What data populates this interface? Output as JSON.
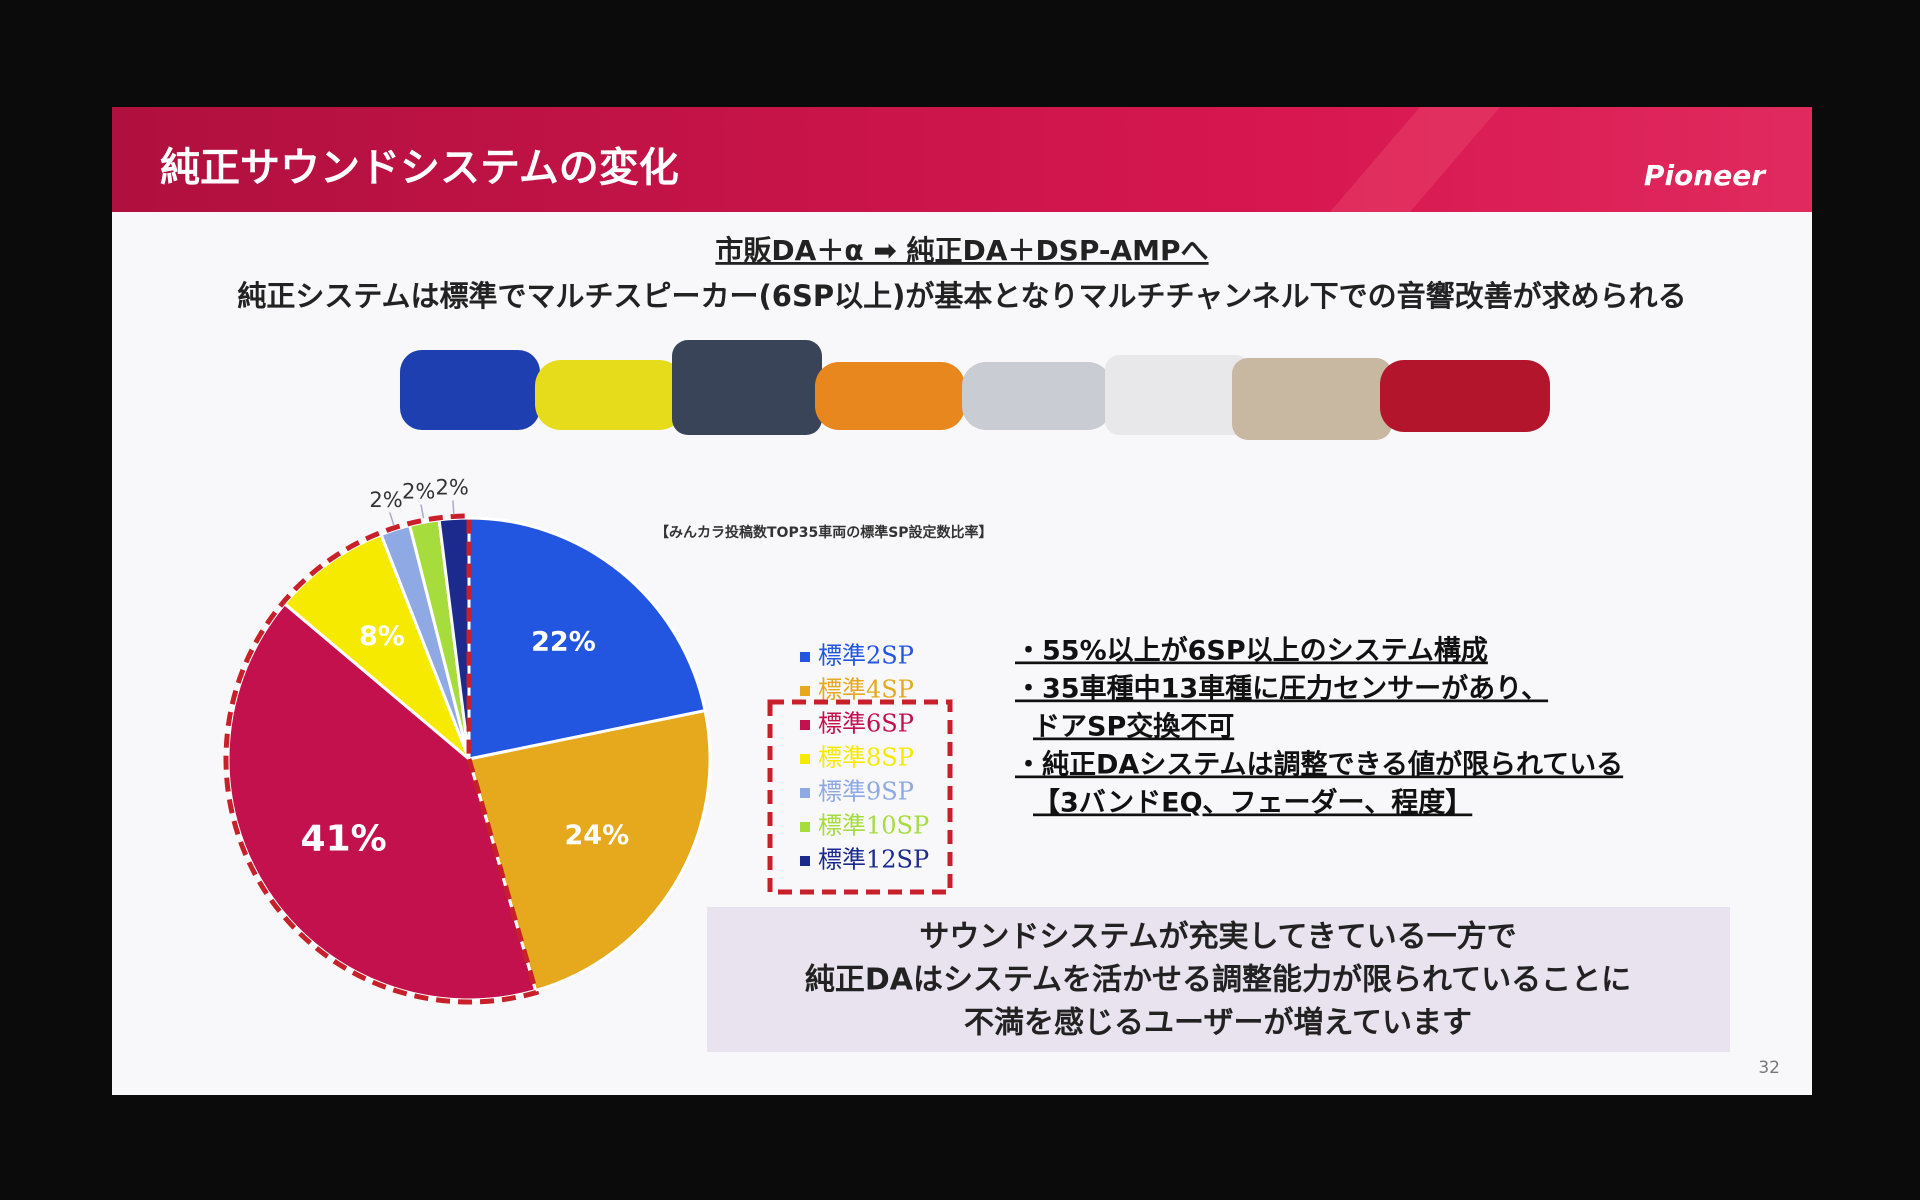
{
  "slide": {
    "title": "純正サウンドシステムの変化",
    "logo": "Pioneer",
    "headline": "市販DA＋α ➡ 純正DA＋DSP-AMPへ",
    "subheadline": "純正システムは標準でマルチスピーカー(6SP以上)が基本となりマルチチャンネル下での音響改善が求められる",
    "bullets": [
      "・55%以上が6SP以上のシステム構成",
      "・35車種中13車種に圧力センサーがあり、",
      "ドアSP交換不可",
      "・純正DAシステムは調整できる値が限られている",
      "【3バンドEQ、フェーダー、程度】"
    ],
    "conclusion": [
      "サウンドシステムが充実してきている一方で",
      "純正DAはシステムを活かせる調整能力が限られていることに",
      "不満を感じるユーザーが増えています"
    ],
    "page_number": "32"
  },
  "chart_data": {
    "type": "pie",
    "title": "【みんカラ投稿数TOP35車両の標準SP設定数比率】",
    "categories": [
      "標準2SP",
      "標準4SP",
      "標準6SP",
      "標準8SP",
      "標準9SP",
      "標準10SP",
      "標準12SP"
    ],
    "values": [
      22,
      24,
      41,
      8,
      2,
      2,
      2
    ],
    "value_labels": [
      "22%",
      "24%",
      "41%",
      "8%",
      "2%",
      "2%",
      "2%"
    ],
    "colors": [
      "#2356e0",
      "#e6a91e",
      "#c2114c",
      "#f6ea00",
      "#8ea9e4",
      "#a6dc3c",
      "#1b2a8c"
    ],
    "legend": "right"
  }
}
